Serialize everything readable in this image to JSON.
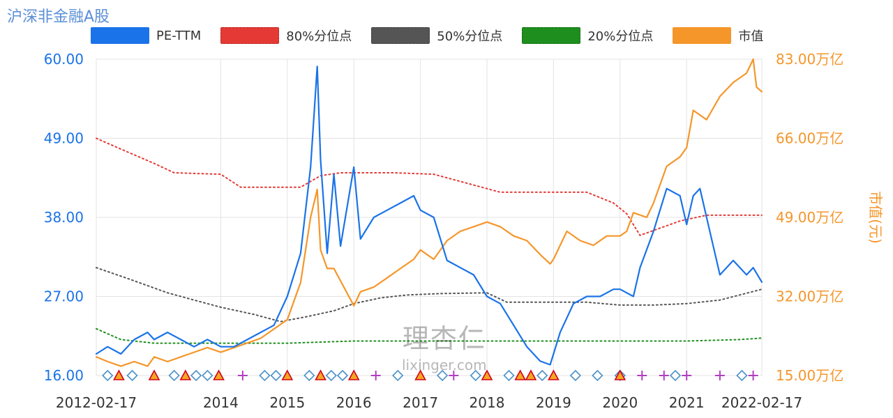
{
  "title": "沪深非金融A股",
  "legend": [
    {
      "name": "PE-TTM",
      "color": "#1a73e8"
    },
    {
      "name": "80%分位点",
      "color": "#e53935"
    },
    {
      "name": "50%分位点",
      "color": "#555555"
    },
    {
      "name": "20%分位点",
      "color": "#1e8e1e"
    },
    {
      "name": "市值",
      "color": "#f5962a"
    }
  ],
  "watermark": {
    "logo": "理杏仁",
    "url": "lixinger.com"
  },
  "chart_data": {
    "type": "line",
    "title": "沪深非金融A股",
    "x_axis": {
      "range": [
        2012.13,
        2022.13
      ],
      "ticks": [
        {
          "value": 2012.13,
          "label": "2012-02-17"
        },
        {
          "value": 2014.0,
          "label": "2014"
        },
        {
          "value": 2015.0,
          "label": "2015"
        },
        {
          "value": 2016.0,
          "label": "2016"
        },
        {
          "value": 2017.0,
          "label": "2017"
        },
        {
          "value": 2018.0,
          "label": "2018"
        },
        {
          "value": 2019.0,
          "label": "2019"
        },
        {
          "value": 2020.0,
          "label": "2020"
        },
        {
          "value": 2021.0,
          "label": "2021"
        },
        {
          "value": 2022.13,
          "label": "2022-02-17"
        }
      ]
    },
    "y_left": {
      "range": [
        16,
        60
      ],
      "ticks": [
        "16.00",
        "27.00",
        "38.00",
        "49.00",
        "60.00"
      ],
      "color": "#1a73e8"
    },
    "y_right": {
      "range": [
        15,
        83
      ],
      "ticks": [
        "15.00万亿",
        "32.00万亿",
        "49.00万亿",
        "66.00万亿",
        "83.00万亿"
      ],
      "label": "市值(元)",
      "color": "#f5962a"
    },
    "grid": true,
    "series": [
      {
        "name": "PE-TTM",
        "axis": "left",
        "color": "#1a73e8",
        "style": "solid",
        "x": [
          2012.13,
          2012.3,
          2012.5,
          2012.7,
          2012.9,
          2013.0,
          2013.2,
          2013.4,
          2013.6,
          2013.8,
          2014.0,
          2014.2,
          2014.4,
          2014.6,
          2014.8,
          2015.0,
          2015.2,
          2015.35,
          2015.45,
          2015.5,
          2015.6,
          2015.7,
          2015.8,
          2016.0,
          2016.1,
          2016.3,
          2016.5,
          2016.7,
          2016.9,
          2017.0,
          2017.2,
          2017.4,
          2017.6,
          2017.8,
          2018.0,
          2018.2,
          2018.4,
          2018.6,
          2018.8,
          2018.95,
          2019.0,
          2019.1,
          2019.3,
          2019.5,
          2019.7,
          2019.9,
          2020.0,
          2020.2,
          2020.3,
          2020.5,
          2020.7,
          2020.9,
          2021.0,
          2021.1,
          2021.2,
          2021.3,
          2021.5,
          2021.7,
          2021.9,
          2022.0,
          2022.13
        ],
        "y": [
          19,
          20,
          19,
          21,
          22,
          21,
          22,
          21,
          20,
          21,
          20,
          20,
          21,
          22,
          23,
          27,
          33,
          45,
          59,
          46,
          33,
          44,
          34,
          45,
          35,
          38,
          39,
          40,
          41,
          39,
          38,
          32,
          31,
          30,
          27,
          26,
          23,
          20,
          18,
          17.5,
          19,
          22,
          26,
          27,
          27,
          28,
          28,
          27,
          31,
          36,
          42,
          41,
          37,
          41,
          42,
          38,
          30,
          32,
          30,
          31,
          29
        ]
      },
      {
        "name": "80%分位点",
        "axis": "left",
        "color": "#e53935",
        "style": "dotted",
        "x": [
          2012.13,
          2012.5,
          2013.0,
          2013.3,
          2014.0,
          2014.3,
          2015.2,
          2015.5,
          2015.8,
          2016.6,
          2017.2,
          2017.8,
          2018.2,
          2019.0,
          2019.5,
          2019.9,
          2020.1,
          2020.3,
          2020.6,
          2020.9,
          2021.3,
          2022.13
        ],
        "y": [
          49,
          47.5,
          45.5,
          44.2,
          44,
          42.2,
          42.2,
          43.8,
          44.2,
          44.2,
          44,
          42.5,
          41.5,
          41.5,
          41.5,
          40,
          38.5,
          35.5,
          36.5,
          37.5,
          38.3,
          38.3
        ]
      },
      {
        "name": "50%分位点",
        "axis": "left",
        "color": "#555555",
        "style": "dotted",
        "x": [
          2012.13,
          2012.6,
          2013.2,
          2013.6,
          2014.0,
          2014.5,
          2014.9,
          2015.3,
          2015.7,
          2016.0,
          2016.4,
          2016.8,
          2017.3,
          2018.0,
          2018.3,
          2018.8,
          2019.5,
          2020.0,
          2020.5,
          2021.0,
          2021.5,
          2022.13
        ],
        "y": [
          31,
          29.5,
          27.5,
          26.5,
          25.5,
          24.5,
          23.5,
          24.2,
          25,
          26,
          26.8,
          27.2,
          27.4,
          27.5,
          26.2,
          26.2,
          26.2,
          25.8,
          25.8,
          26,
          26.5,
          28
        ]
      },
      {
        "name": "20%分位点",
        "axis": "left",
        "color": "#1e8e1e",
        "style": "dotted",
        "x": [
          2012.13,
          2012.5,
          2013.0,
          2014.0,
          2015.0,
          2016.0,
          2017.0,
          2018.0,
          2019.0,
          2020.0,
          2021.0,
          2021.8,
          2022.13
        ],
        "y": [
          22.5,
          21,
          20.5,
          20.5,
          20.5,
          20.8,
          20.8,
          20.8,
          20.8,
          20.8,
          20.8,
          21,
          21.2
        ]
      },
      {
        "name": "市值",
        "axis": "right",
        "color": "#f5962a",
        "style": "solid",
        "x": [
          2012.13,
          2012.3,
          2012.5,
          2012.7,
          2012.9,
          2013.0,
          2013.2,
          2013.4,
          2013.6,
          2013.8,
          2014.0,
          2014.2,
          2014.4,
          2014.6,
          2014.8,
          2015.0,
          2015.2,
          2015.35,
          2015.45,
          2015.5,
          2015.6,
          2015.7,
          2016.0,
          2016.1,
          2016.3,
          2016.5,
          2016.7,
          2016.9,
          2017.0,
          2017.2,
          2017.4,
          2017.6,
          2017.8,
          2018.0,
          2018.2,
          2018.4,
          2018.6,
          2018.8,
          2018.95,
          2019.0,
          2019.2,
          2019.4,
          2019.6,
          2019.8,
          2020.0,
          2020.1,
          2020.2,
          2020.4,
          2020.5,
          2020.7,
          2020.9,
          2021.0,
          2021.1,
          2021.3,
          2021.5,
          2021.7,
          2021.9,
          2022.0,
          2022.05,
          2022.13
        ],
        "y": [
          19,
          18,
          17,
          18,
          17,
          19,
          18,
          19,
          20,
          21,
          20,
          21,
          22,
          23,
          25,
          27,
          35,
          49,
          55,
          42,
          38,
          38,
          30,
          33,
          34,
          36,
          38,
          40,
          42,
          40,
          44,
          46,
          47,
          48,
          47,
          45,
          44,
          41,
          39,
          40,
          46,
          44,
          43,
          45,
          45,
          46,
          50,
          49,
          52,
          60,
          62,
          64,
          72,
          70,
          75,
          78,
          80,
          83,
          77,
          76
        ]
      }
    ],
    "annotations": {
      "markers": [
        {
          "x": 2012.3,
          "kind": "diamond"
        },
        {
          "x": 2012.47,
          "kind": "triangle"
        },
        {
          "x": 2012.67,
          "kind": "diamond"
        },
        {
          "x": 2013.0,
          "kind": "triangle"
        },
        {
          "x": 2013.3,
          "kind": "diamond"
        },
        {
          "x": 2013.47,
          "kind": "triangle"
        },
        {
          "x": 2013.63,
          "kind": "diamond"
        },
        {
          "x": 2013.8,
          "kind": "diamond"
        },
        {
          "x": 2013.97,
          "kind": "triangle"
        },
        {
          "x": 2014.33,
          "kind": "plus"
        },
        {
          "x": 2014.66,
          "kind": "diamond"
        },
        {
          "x": 2014.83,
          "kind": "diamond"
        },
        {
          "x": 2015.0,
          "kind": "triangle"
        },
        {
          "x": 2015.33,
          "kind": "diamond"
        },
        {
          "x": 2015.5,
          "kind": "triangle"
        },
        {
          "x": 2015.66,
          "kind": "diamond"
        },
        {
          "x": 2015.83,
          "kind": "diamond"
        },
        {
          "x": 2016.0,
          "kind": "triangle"
        },
        {
          "x": 2016.33,
          "kind": "plus"
        },
        {
          "x": 2016.66,
          "kind": "diamond"
        },
        {
          "x": 2017.0,
          "kind": "triangle"
        },
        {
          "x": 2017.33,
          "kind": "diamond"
        },
        {
          "x": 2017.5,
          "kind": "plus"
        },
        {
          "x": 2017.83,
          "kind": "diamond"
        },
        {
          "x": 2018.0,
          "kind": "triangle"
        },
        {
          "x": 2018.33,
          "kind": "diamond"
        },
        {
          "x": 2018.5,
          "kind": "triangle"
        },
        {
          "x": 2018.66,
          "kind": "triangle"
        },
        {
          "x": 2018.83,
          "kind": "diamond"
        },
        {
          "x": 2019.0,
          "kind": "triangle"
        },
        {
          "x": 2019.33,
          "kind": "diamond"
        },
        {
          "x": 2019.66,
          "kind": "diamond"
        },
        {
          "x": 2020.0,
          "kind": "diamond"
        },
        {
          "x": 2020.0,
          "kind": "triangle"
        },
        {
          "x": 2020.33,
          "kind": "plus"
        },
        {
          "x": 2020.66,
          "kind": "plus"
        },
        {
          "x": 2020.83,
          "kind": "diamond"
        },
        {
          "x": 2021.0,
          "kind": "plus"
        },
        {
          "x": 2021.5,
          "kind": "plus"
        },
        {
          "x": 2021.83,
          "kind": "diamond"
        },
        {
          "x": 2022.0,
          "kind": "plus"
        }
      ]
    }
  }
}
